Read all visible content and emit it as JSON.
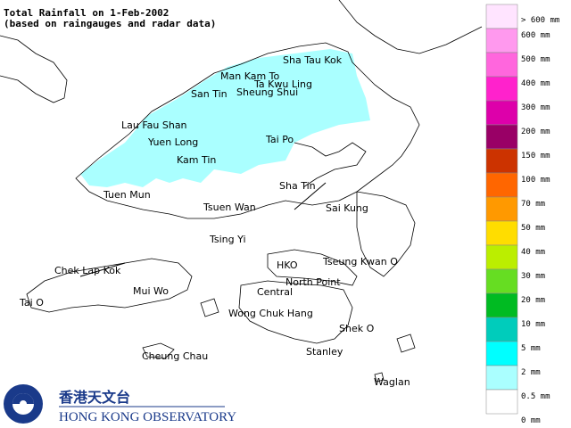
{
  "header": {
    "title": "Total Rainfall on 1-Feb-2002",
    "subtitle": "(based on raingauges and radar data)"
  },
  "places": [
    "Sha Tau Kok",
    "Man Kam To",
    "Ta Kwu Ling",
    "San Tin",
    "Sheung Shui",
    "Lau Fau Shan",
    "Yuen Long",
    "Tai Po",
    "Kam Tin",
    "Sha Tin",
    "Tuen Mun",
    "Tsuen Wan",
    "Sai Kung",
    "Tsing Yi",
    "Chek Lap Kok",
    "HKO",
    "Tseung Kwan O",
    "Mui Wo",
    "North Point",
    "Central",
    "Tai O",
    "Wong Chuk Hang",
    "Shek O",
    "Cheung Chau",
    "Stanley",
    "Waglan"
  ],
  "legend": {
    "labels": [
      "> 600 mm",
      "600 mm",
      "500 mm",
      "400 mm",
      "300 mm",
      "200 mm",
      "150 mm",
      "100 mm",
      "70 mm",
      "50 mm",
      "40 mm",
      "30 mm",
      "20 mm",
      "10 mm",
      "5 mm",
      "2 mm",
      "0.5 mm",
      "0 mm"
    ],
    "colors": [
      "#ffe4ff",
      "#ff99ee",
      "#ff66dd",
      "#ff22cc",
      "#dd00aa",
      "#990066",
      "#cc3300",
      "#ff6600",
      "#ff9900",
      "#ffdd00",
      "#bbee00",
      "#66dd22",
      "#00bb22",
      "#00ccbb",
      "#00ffff",
      "#aaffff",
      "#ffffff"
    ]
  },
  "logo": {
    "chinese": "香港天文台",
    "english": "HONG KONG OBSERVATORY"
  }
}
